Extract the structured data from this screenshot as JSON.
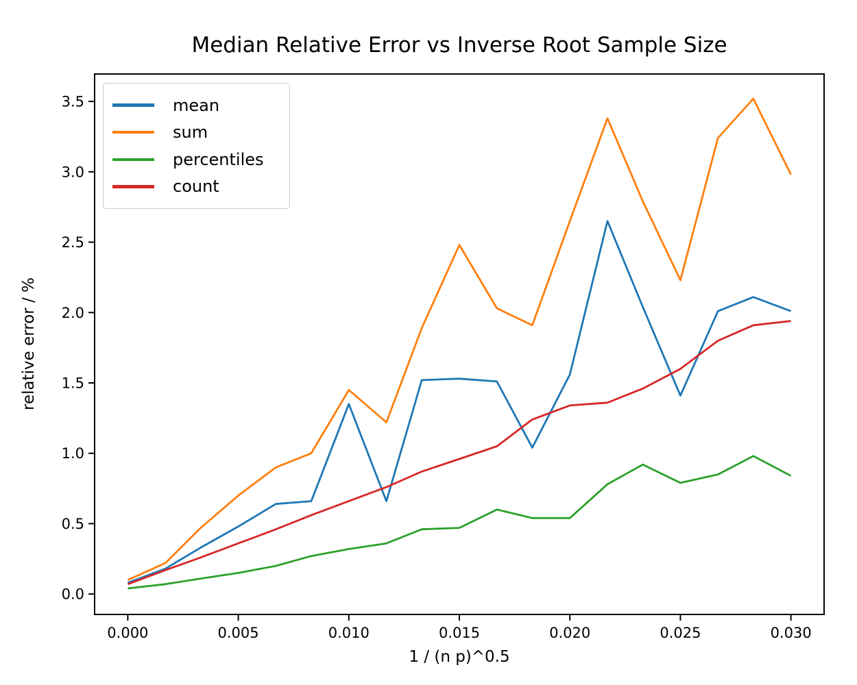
{
  "chart_data": {
    "type": "line",
    "title": "Median Relative Error vs Inverse Root Sample Size",
    "xlabel": "1 / (n p)^0.5",
    "ylabel": "relative error / %",
    "x": [
      0.0,
      0.0017,
      0.0033,
      0.005,
      0.0067,
      0.0083,
      0.01,
      0.0117,
      0.0133,
      0.015,
      0.0167,
      0.0183,
      0.02,
      0.0217,
      0.0233,
      0.025,
      0.0267,
      0.0283,
      0.03
    ],
    "series": [
      {
        "name": "mean",
        "color": "#1f77b4",
        "values": [
          0.08,
          0.18,
          0.33,
          0.48,
          0.64,
          0.66,
          1.35,
          0.66,
          1.52,
          1.53,
          1.51,
          1.04,
          1.56,
          2.65,
          2.04,
          1.41,
          2.01,
          2.11,
          2.01
        ]
      },
      {
        "name": "sum",
        "color": "#ff7f0e",
        "values": [
          0.1,
          0.22,
          0.47,
          0.7,
          0.9,
          1.0,
          1.45,
          1.22,
          1.89,
          2.48,
          2.03,
          1.91,
          2.65,
          3.38,
          2.79,
          2.23,
          3.24,
          3.52,
          2.98
        ]
      },
      {
        "name": "percentiles",
        "color": "#2ca02c",
        "values": [
          0.04,
          0.07,
          0.11,
          0.15,
          0.2,
          0.27,
          0.32,
          0.36,
          0.46,
          0.47,
          0.6,
          0.54,
          0.54,
          0.78,
          0.92,
          0.79,
          0.85,
          0.98,
          0.84
        ]
      },
      {
        "name": "count",
        "color": "#d62728",
        "values": [
          0.07,
          0.17,
          0.26,
          0.36,
          0.46,
          0.56,
          0.66,
          0.76,
          0.87,
          0.96,
          1.05,
          1.24,
          1.34,
          1.36,
          1.46,
          1.6,
          1.8,
          1.91,
          1.94
        ]
      }
    ],
    "xlim": [
      -0.0015,
      0.0315
    ],
    "ylim": [
      -0.145,
      3.695
    ],
    "xticks": {
      "values": [
        0.0,
        0.005,
        0.01,
        0.015,
        0.02,
        0.025,
        0.03
      ],
      "labels": [
        "0.000",
        "0.005",
        "0.010",
        "0.015",
        "0.020",
        "0.025",
        "0.030"
      ]
    },
    "yticks": {
      "values": [
        0.0,
        0.5,
        1.0,
        1.5,
        2.0,
        2.5,
        3.0,
        3.5
      ],
      "labels": [
        "0.0",
        "0.5",
        "1.0",
        "1.5",
        "2.0",
        "2.5",
        "3.0",
        "3.5"
      ]
    },
    "legend": {
      "position": "upper left",
      "entries": [
        "mean",
        "sum",
        "percentiles",
        "count"
      ]
    },
    "grid": false,
    "background_color": "#ffffff",
    "axis_color": "#000000",
    "text_color": "#000000"
  }
}
